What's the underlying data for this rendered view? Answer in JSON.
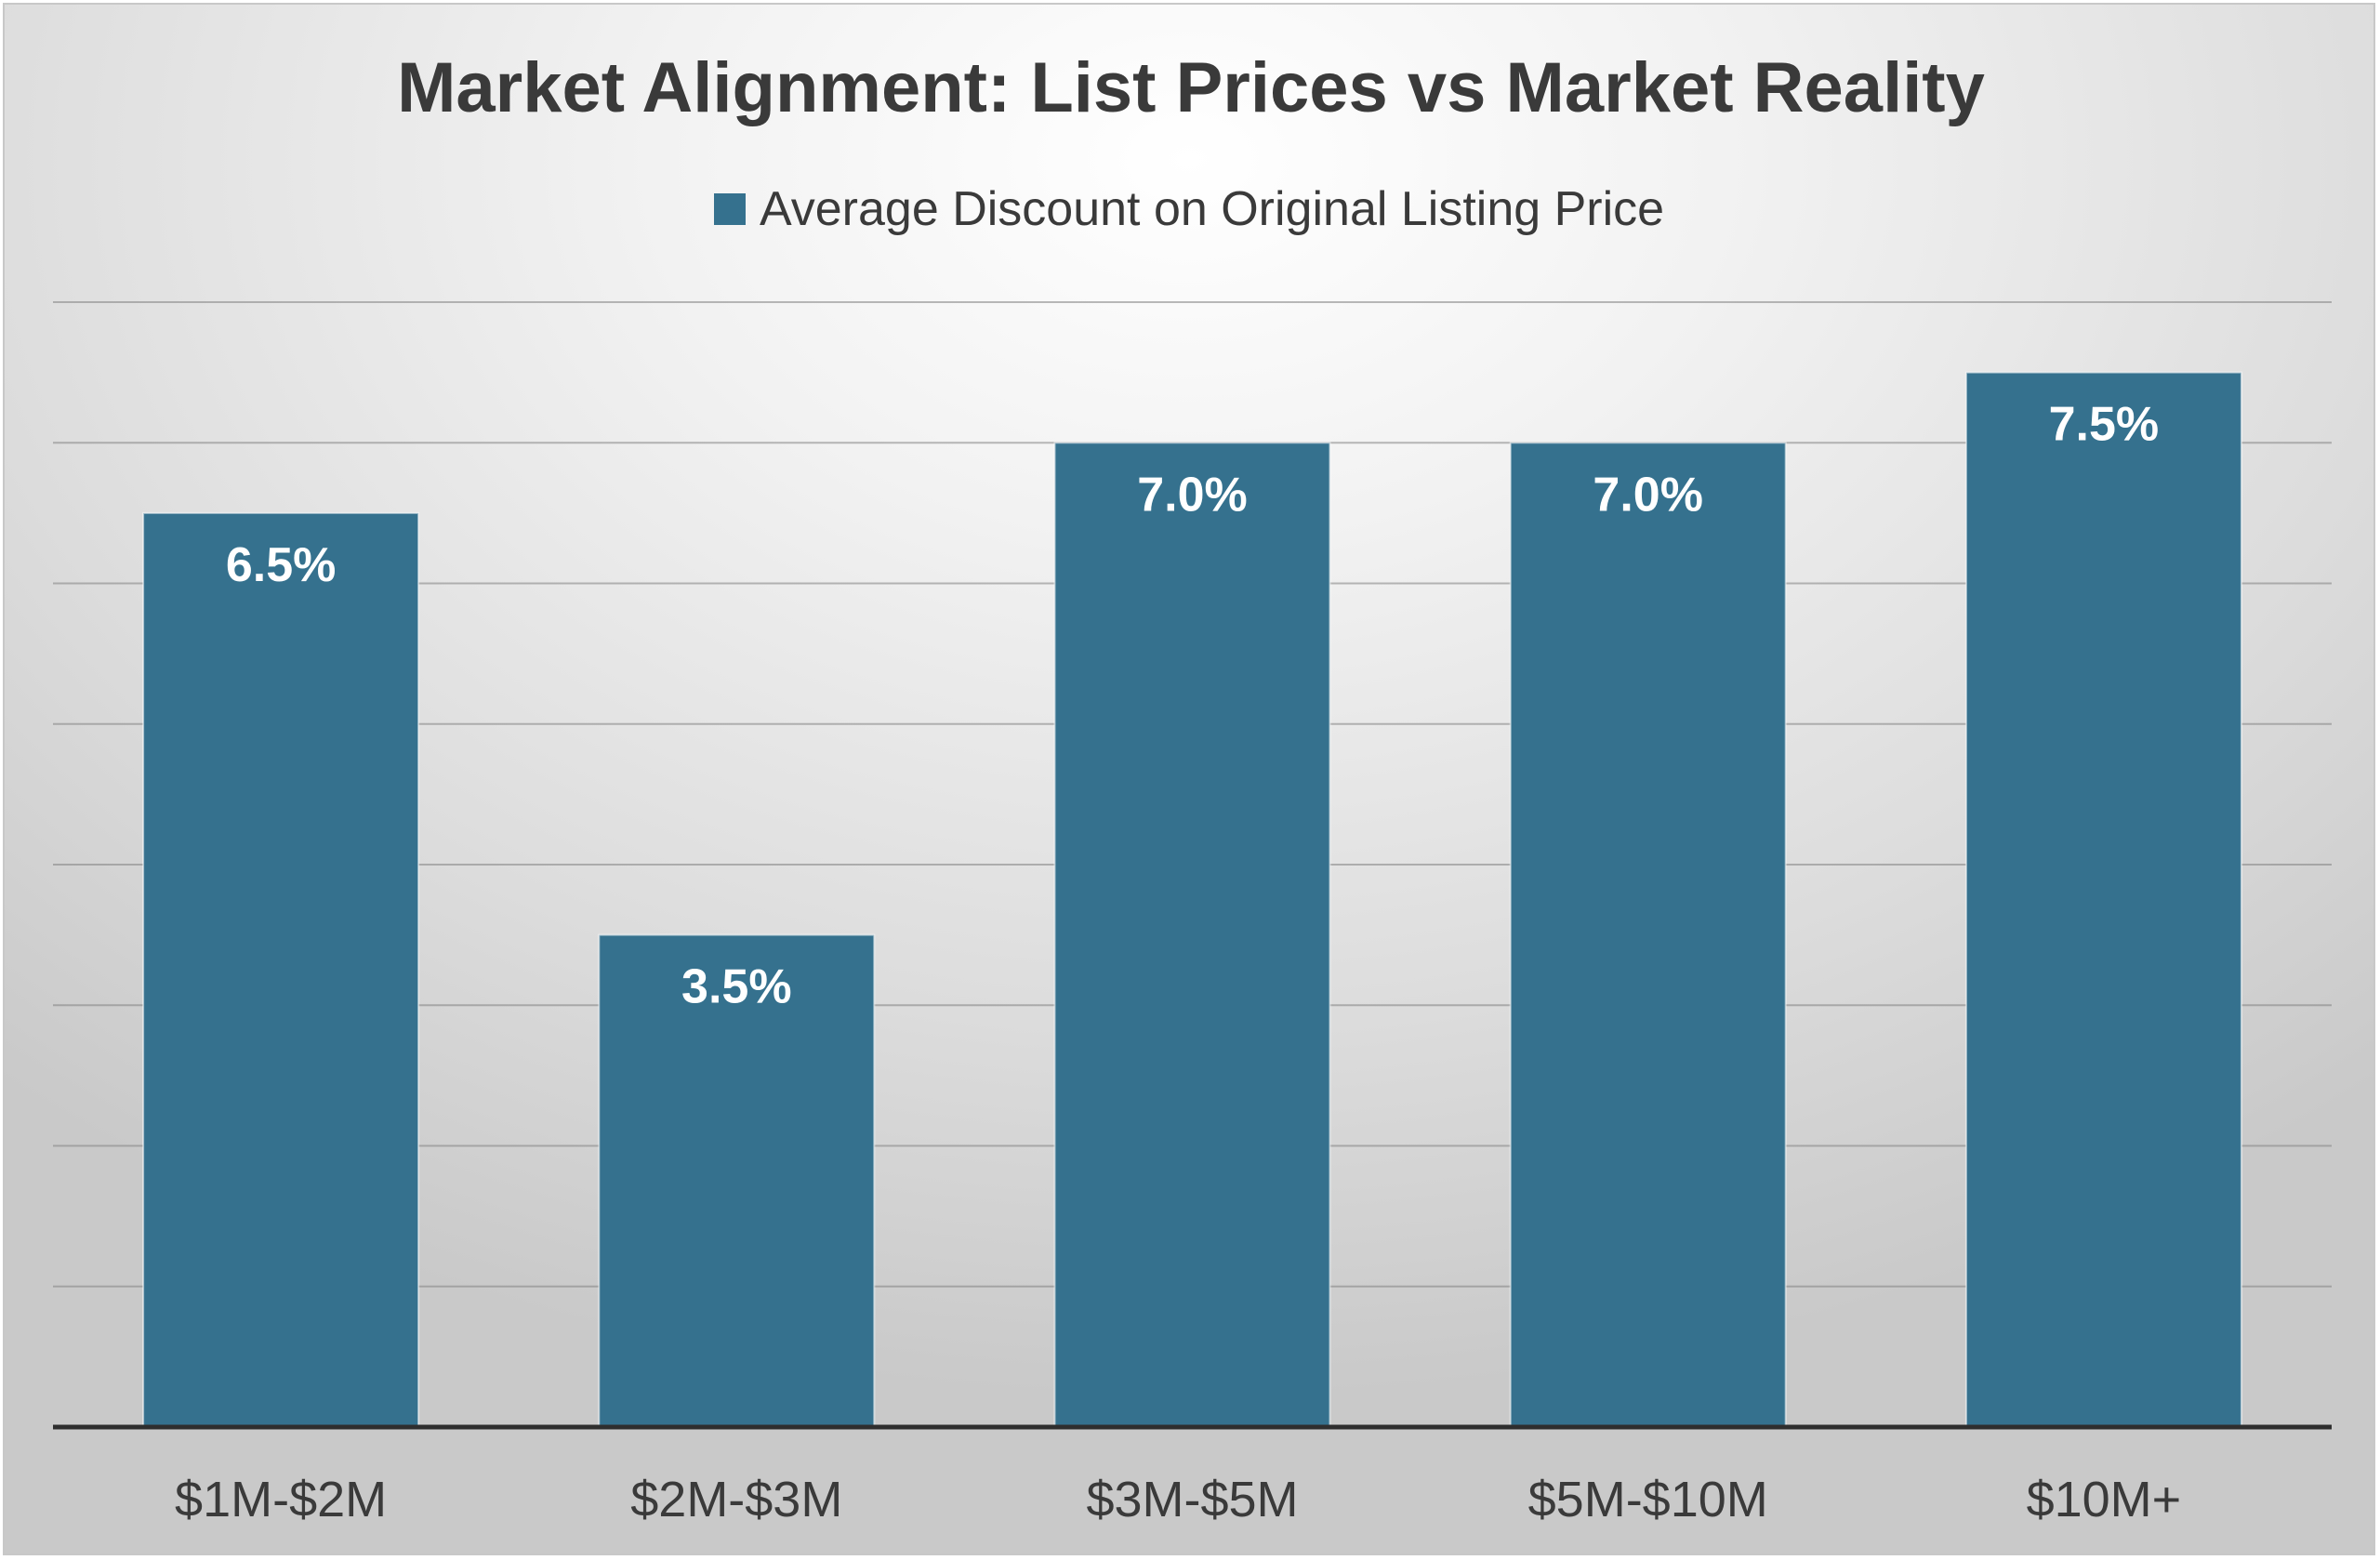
{
  "chart_data": {
    "type": "bar",
    "title": "Market Alignment: List Prices vs Market Reality",
    "categories": [
      "$1M-$2M",
      "$2M-$3M",
      "$3M-$5M",
      "$5M-$10M",
      "$10M+"
    ],
    "series": [
      {
        "name": "Average Discount on Original Listing Price",
        "values": [
          6.5,
          3.5,
          7.0,
          7.0,
          7.5
        ],
        "labels": [
          "6.5%",
          "3.5%",
          "7.0%",
          "7.0%",
          "7.5%"
        ],
        "color": "#35718e"
      }
    ],
    "ylim": [
      0,
      8
    ],
    "y_grid_step": 1,
    "grid": true,
    "legend_position": "top",
    "xlabel": "",
    "ylabel": ""
  }
}
